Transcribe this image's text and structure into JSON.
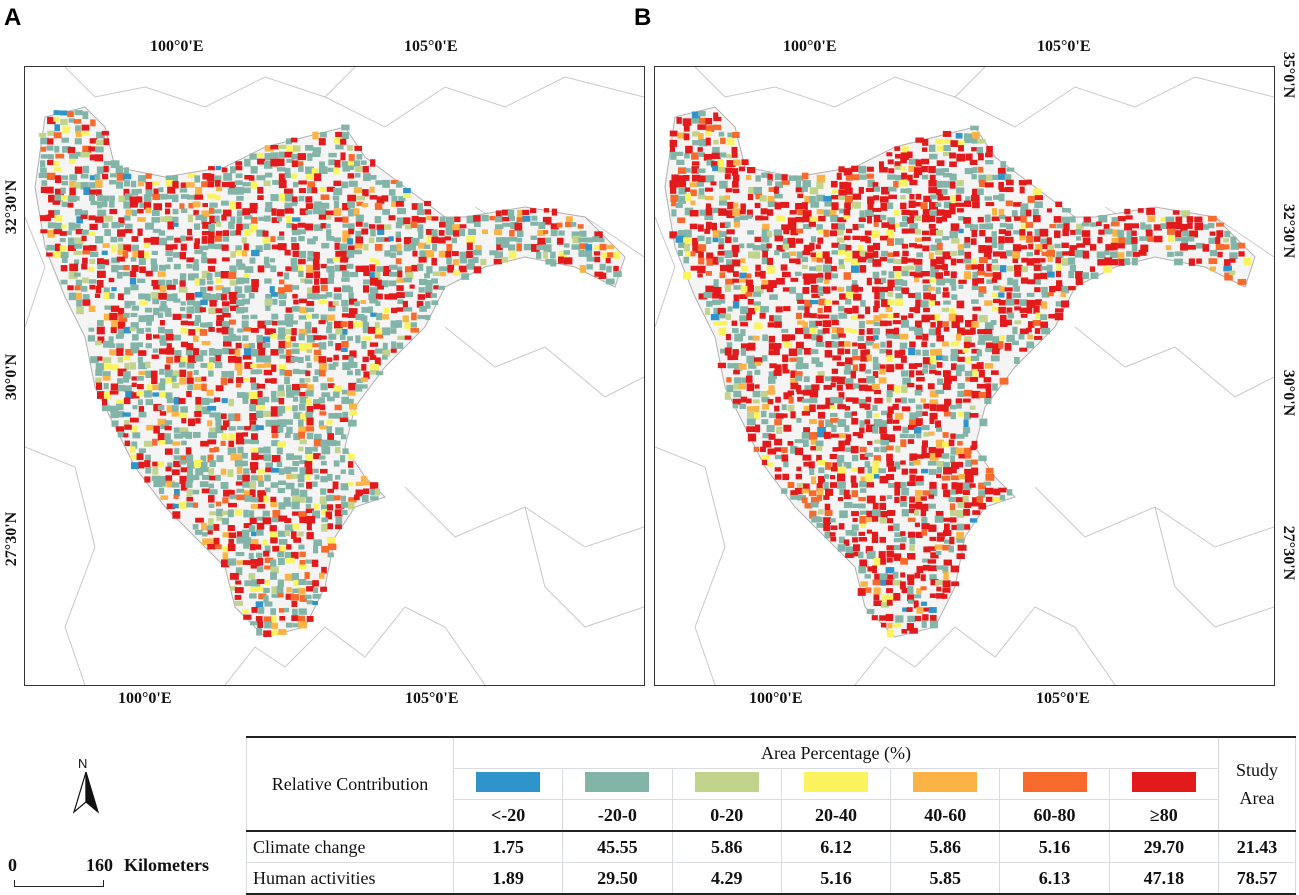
{
  "panels": [
    {
      "letter": "A",
      "top_ticks": [
        "100°0'E",
        "105°0'E"
      ],
      "bottom_ticks": [
        "100°0'E",
        "105°0'E"
      ],
      "left_ticks": [
        "32°30'N",
        "30°0'N",
        "27°30'N"
      ]
    },
    {
      "letter": "B",
      "top_ticks": [
        "100°0'E",
        "105°0'E"
      ],
      "bottom_ticks": [
        "100°0'E",
        "105°0'E"
      ],
      "right_ticks": [
        "35°0'N",
        "32°30'N",
        "30°0'N",
        "27°30'N"
      ]
    }
  ],
  "legend": {
    "header_label": "Relative Contribution",
    "area_header": "Area Percentage (%)",
    "study_area_header": "Study Area",
    "categories": [
      {
        "label": "<-20",
        "color": "#2e94c9"
      },
      {
        "label": "-20-0",
        "color": "#82b4a8"
      },
      {
        "label": "0-20",
        "color": "#c2d38b"
      },
      {
        "label": "20-40",
        "color": "#fbf35e"
      },
      {
        "label": "40-60",
        "color": "#fcb346"
      },
      {
        "label": "60-80",
        "color": "#f86a2c"
      },
      {
        "label": "≥80",
        "color": "#e31a1c"
      }
    ],
    "rows": [
      {
        "label": "Climate change",
        "values": [
          "1.75",
          "45.55",
          "5.86",
          "6.12",
          "5.86",
          "5.16",
          "29.70"
        ],
        "study_area": "21.43"
      },
      {
        "label": "Human activities",
        "values": [
          "1.89",
          "29.50",
          "4.29",
          "5.16",
          "5.85",
          "6.13",
          "47.18"
        ],
        "study_area": "78.57"
      }
    ]
  },
  "north_label": "N",
  "scale": {
    "zero": "0",
    "distance": "160",
    "unit": "Kilometers"
  }
}
